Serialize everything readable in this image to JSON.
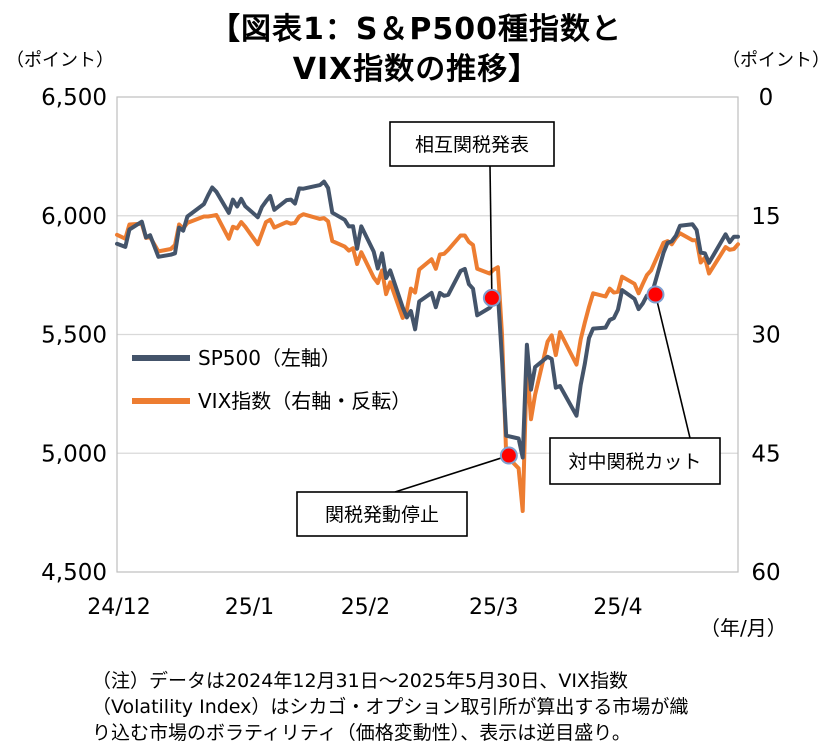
{
  "title_line1": "【図表1：S＆P500種指数と",
  "title_line2": "VIX指数の推移】",
  "left_unit": "（ポイント）",
  "right_unit": "（ポイント）",
  "x_unit": "（年/月）",
  "note": [
    "（注）データは2024年12月31日～2025年5月30日、VIX指数",
    "（Volatility Index）はシカゴ・オプション取引所が算出する市場が織",
    "り込む市場のボラティリティ（価格変動性）、表示は逆目盛り。"
  ],
  "chart_data": {
    "type": "line",
    "x_start": "2024-12-31",
    "x_end": "2025-05-30",
    "x_tick_labels": [
      {
        "label": "24/12",
        "date": "2024-12-31"
      },
      {
        "label": "25/1",
        "date": "2025-02-01"
      },
      {
        "label": "25/2",
        "date": "2025-03-01"
      },
      {
        "label": "25/3",
        "date": "2025-04-01"
      },
      {
        "label": "25/4",
        "date": "2025-05-01"
      }
    ],
    "y_left": {
      "label": "SP500（左軸）",
      "min": 4500,
      "max": 6500,
      "ticks": [
        "4,500",
        "5,000",
        "5,500",
        "6,000",
        "6,500"
      ],
      "tick_values": [
        4500,
        5000,
        5500,
        6000,
        6500
      ]
    },
    "y_right": {
      "label": "VIX指数（右軸・反転）",
      "min": 0,
      "max": 60,
      "inverted": true,
      "ticks": [
        "0",
        "15",
        "30",
        "45",
        "60"
      ],
      "tick_values": [
        0,
        15,
        30,
        45,
        60
      ]
    },
    "grid": "horizontal",
    "legend_position": "center-left",
    "series": [
      {
        "name": "SP500（左軸）",
        "color": "#44546a",
        "axis": "left",
        "points": [
          [
            "2024-12-31",
            5882
          ],
          [
            "2025-01-02",
            5869
          ],
          [
            "2025-01-03",
            5942
          ],
          [
            "2025-01-06",
            5975
          ],
          [
            "2025-01-07",
            5909
          ],
          [
            "2025-01-08",
            5918
          ],
          [
            "2025-01-10",
            5827
          ],
          [
            "2025-01-13",
            5836
          ],
          [
            "2025-01-14",
            5842
          ],
          [
            "2025-01-15",
            5950
          ],
          [
            "2025-01-16",
            5937
          ],
          [
            "2025-01-17",
            5997
          ],
          [
            "2025-01-21",
            6049
          ],
          [
            "2025-01-22",
            6086
          ],
          [
            "2025-01-23",
            6119
          ],
          [
            "2025-01-24",
            6101
          ],
          [
            "2025-01-27",
            6012
          ],
          [
            "2025-01-28",
            6068
          ],
          [
            "2025-01-29",
            6039
          ],
          [
            "2025-01-30",
            6071
          ],
          [
            "2025-01-31",
            6040
          ],
          [
            "2025-02-03",
            5994
          ],
          [
            "2025-02-04",
            6037
          ],
          [
            "2025-02-05",
            6061
          ],
          [
            "2025-02-06",
            6083
          ],
          [
            "2025-02-07",
            6025
          ],
          [
            "2025-02-10",
            6066
          ],
          [
            "2025-02-11",
            6068
          ],
          [
            "2025-02-12",
            6051
          ],
          [
            "2025-02-13",
            6115
          ],
          [
            "2025-02-14",
            6114
          ],
          [
            "2025-02-18",
            6129
          ],
          [
            "2025-02-19",
            6144
          ],
          [
            "2025-02-20",
            6117
          ],
          [
            "2025-02-21",
            6013
          ],
          [
            "2025-02-24",
            5983
          ],
          [
            "2025-02-25",
            5955
          ],
          [
            "2025-02-26",
            5956
          ],
          [
            "2025-02-27",
            5861
          ],
          [
            "2025-02-28",
            5955
          ],
          [
            "2025-03-03",
            5849
          ],
          [
            "2025-03-04",
            5778
          ],
          [
            "2025-03-05",
            5842
          ],
          [
            "2025-03-06",
            5738
          ],
          [
            "2025-03-07",
            5770
          ],
          [
            "2025-03-10",
            5614
          ],
          [
            "2025-03-11",
            5572
          ],
          [
            "2025-03-12",
            5599
          ],
          [
            "2025-03-13",
            5522
          ],
          [
            "2025-03-14",
            5639
          ],
          [
            "2025-03-17",
            5675
          ],
          [
            "2025-03-18",
            5615
          ],
          [
            "2025-03-19",
            5675
          ],
          [
            "2025-03-20",
            5663
          ],
          [
            "2025-03-21",
            5667
          ],
          [
            "2025-03-24",
            5768
          ],
          [
            "2025-03-25",
            5776
          ],
          [
            "2025-03-26",
            5712
          ],
          [
            "2025-03-27",
            5693
          ],
          [
            "2025-03-28",
            5581
          ],
          [
            "2025-03-31",
            5612
          ],
          [
            "2025-04-01",
            5633
          ],
          [
            "2025-04-02",
            5671
          ],
          [
            "2025-04-03",
            5397
          ],
          [
            "2025-04-04",
            5074
          ],
          [
            "2025-04-07",
            5062
          ],
          [
            "2025-04-08",
            4982
          ],
          [
            "2025-04-09",
            5457
          ],
          [
            "2025-04-10",
            5268
          ],
          [
            "2025-04-11",
            5363
          ],
          [
            "2025-04-14",
            5406
          ],
          [
            "2025-04-15",
            5397
          ],
          [
            "2025-04-16",
            5276
          ],
          [
            "2025-04-17",
            5283
          ],
          [
            "2025-04-21",
            5158
          ],
          [
            "2025-04-22",
            5288
          ],
          [
            "2025-04-23",
            5376
          ],
          [
            "2025-04-24",
            5485
          ],
          [
            "2025-04-25",
            5525
          ],
          [
            "2025-04-28",
            5529
          ],
          [
            "2025-04-29",
            5561
          ],
          [
            "2025-04-30",
            5569
          ],
          [
            "2025-05-01",
            5604
          ],
          [
            "2025-05-02",
            5687
          ],
          [
            "2025-05-05",
            5650
          ],
          [
            "2025-05-06",
            5607
          ],
          [
            "2025-05-07",
            5631
          ],
          [
            "2025-05-08",
            5664
          ],
          [
            "2025-05-09",
            5660
          ],
          [
            "2025-05-12",
            5844
          ],
          [
            "2025-05-13",
            5886
          ],
          [
            "2025-05-14",
            5893
          ],
          [
            "2025-05-15",
            5916
          ],
          [
            "2025-05-16",
            5958
          ],
          [
            "2025-05-19",
            5964
          ],
          [
            "2025-05-20",
            5940
          ],
          [
            "2025-05-21",
            5845
          ],
          [
            "2025-05-22",
            5842
          ],
          [
            "2025-05-23",
            5802
          ],
          [
            "2025-05-27",
            5922
          ],
          [
            "2025-05-28",
            5889
          ],
          [
            "2025-05-29",
            5912
          ],
          [
            "2025-05-30",
            5912
          ]
        ]
      },
      {
        "name": "VIX指数（右軸・反転）",
        "color": "#ed7d31",
        "axis": "right",
        "points": [
          [
            "2024-12-31",
            17.4
          ],
          [
            "2025-01-02",
            17.9
          ],
          [
            "2025-01-03",
            16.1
          ],
          [
            "2025-01-06",
            16.0
          ],
          [
            "2025-01-07",
            17.8
          ],
          [
            "2025-01-08",
            17.7
          ],
          [
            "2025-01-10",
            19.5
          ],
          [
            "2025-01-13",
            19.2
          ],
          [
            "2025-01-14",
            18.7
          ],
          [
            "2025-01-15",
            16.1
          ],
          [
            "2025-01-16",
            16.6
          ],
          [
            "2025-01-17",
            15.9
          ],
          [
            "2025-01-21",
            15.1
          ],
          [
            "2025-01-22",
            15.1
          ],
          [
            "2025-01-23",
            15.0
          ],
          [
            "2025-01-24",
            14.9
          ],
          [
            "2025-01-27",
            17.9
          ],
          [
            "2025-01-28",
            16.4
          ],
          [
            "2025-01-29",
            16.6
          ],
          [
            "2025-01-30",
            15.8
          ],
          [
            "2025-01-31",
            16.4
          ],
          [
            "2025-02-03",
            18.6
          ],
          [
            "2025-02-04",
            17.2
          ],
          [
            "2025-02-05",
            15.8
          ],
          [
            "2025-02-06",
            15.5
          ],
          [
            "2025-02-07",
            16.5
          ],
          [
            "2025-02-10",
            15.8
          ],
          [
            "2025-02-11",
            16.0
          ],
          [
            "2025-02-12",
            15.9
          ],
          [
            "2025-02-13",
            15.1
          ],
          [
            "2025-02-14",
            14.8
          ],
          [
            "2025-02-18",
            15.4
          ],
          [
            "2025-02-19",
            15.3
          ],
          [
            "2025-02-20",
            15.7
          ],
          [
            "2025-02-21",
            18.2
          ],
          [
            "2025-02-24",
            18.9
          ],
          [
            "2025-02-25",
            19.4
          ],
          [
            "2025-02-26",
            19.1
          ],
          [
            "2025-02-27",
            21.1
          ],
          [
            "2025-02-28",
            19.6
          ],
          [
            "2025-03-03",
            22.8
          ],
          [
            "2025-03-04",
            23.5
          ],
          [
            "2025-03-05",
            21.9
          ],
          [
            "2025-03-06",
            24.9
          ],
          [
            "2025-03-07",
            23.4
          ],
          [
            "2025-03-10",
            27.9
          ],
          [
            "2025-03-11",
            26.9
          ],
          [
            "2025-03-12",
            24.2
          ],
          [
            "2025-03-13",
            24.7
          ],
          [
            "2025-03-14",
            21.8
          ],
          [
            "2025-03-17",
            20.5
          ],
          [
            "2025-03-18",
            21.7
          ],
          [
            "2025-03-19",
            19.9
          ],
          [
            "2025-03-20",
            19.8
          ],
          [
            "2025-03-21",
            19.3
          ],
          [
            "2025-03-24",
            17.5
          ],
          [
            "2025-03-25",
            17.5
          ],
          [
            "2025-03-26",
            18.3
          ],
          [
            "2025-03-27",
            18.7
          ],
          [
            "2025-03-28",
            21.7
          ],
          [
            "2025-03-31",
            22.3
          ],
          [
            "2025-04-01",
            21.8
          ],
          [
            "2025-04-02",
            21.5
          ],
          [
            "2025-04-03",
            30.0
          ],
          [
            "2025-04-04",
            45.3
          ],
          [
            "2025-04-07",
            46.9
          ],
          [
            "2025-04-08",
            52.3
          ],
          [
            "2025-04-09",
            33.6
          ],
          [
            "2025-04-10",
            40.7
          ],
          [
            "2025-04-11",
            37.6
          ],
          [
            "2025-04-14",
            30.9
          ],
          [
            "2025-04-15",
            30.1
          ],
          [
            "2025-04-16",
            32.6
          ],
          [
            "2025-04-17",
            29.7
          ],
          [
            "2025-04-21",
            33.8
          ],
          [
            "2025-04-22",
            30.6
          ],
          [
            "2025-04-23",
            28.5
          ],
          [
            "2025-04-24",
            26.5
          ],
          [
            "2025-04-25",
            24.8
          ],
          [
            "2025-04-28",
            25.2
          ],
          [
            "2025-04-29",
            24.2
          ],
          [
            "2025-04-30",
            24.7
          ],
          [
            "2025-05-01",
            24.6
          ],
          [
            "2025-05-02",
            22.7
          ],
          [
            "2025-05-05",
            23.6
          ],
          [
            "2025-05-06",
            24.8
          ],
          [
            "2025-05-07",
            23.6
          ],
          [
            "2025-05-08",
            22.5
          ],
          [
            "2025-05-09",
            21.9
          ],
          [
            "2025-05-12",
            18.4
          ],
          [
            "2025-05-13",
            18.2
          ],
          [
            "2025-05-14",
            18.6
          ],
          [
            "2025-05-15",
            17.8
          ],
          [
            "2025-05-16",
            17.2
          ],
          [
            "2025-05-19",
            18.1
          ],
          [
            "2025-05-20",
            18.1
          ],
          [
            "2025-05-21",
            20.9
          ],
          [
            "2025-05-22",
            20.3
          ],
          [
            "2025-05-23",
            22.3
          ],
          [
            "2025-05-27",
            18.96
          ],
          [
            "2025-05-28",
            19.3
          ],
          [
            "2025-05-29",
            19.2
          ],
          [
            "2025-05-30",
            18.6
          ]
        ]
      }
    ],
    "annotations": [
      {
        "label": "相互関税発表",
        "date": "2025-04-02"
      },
      {
        "label": "関税発動停止",
        "date": "2025-04-09"
      },
      {
        "label": "対中関税カット",
        "date": "2025-05-12"
      }
    ],
    "marker_color": "#ff0000"
  }
}
